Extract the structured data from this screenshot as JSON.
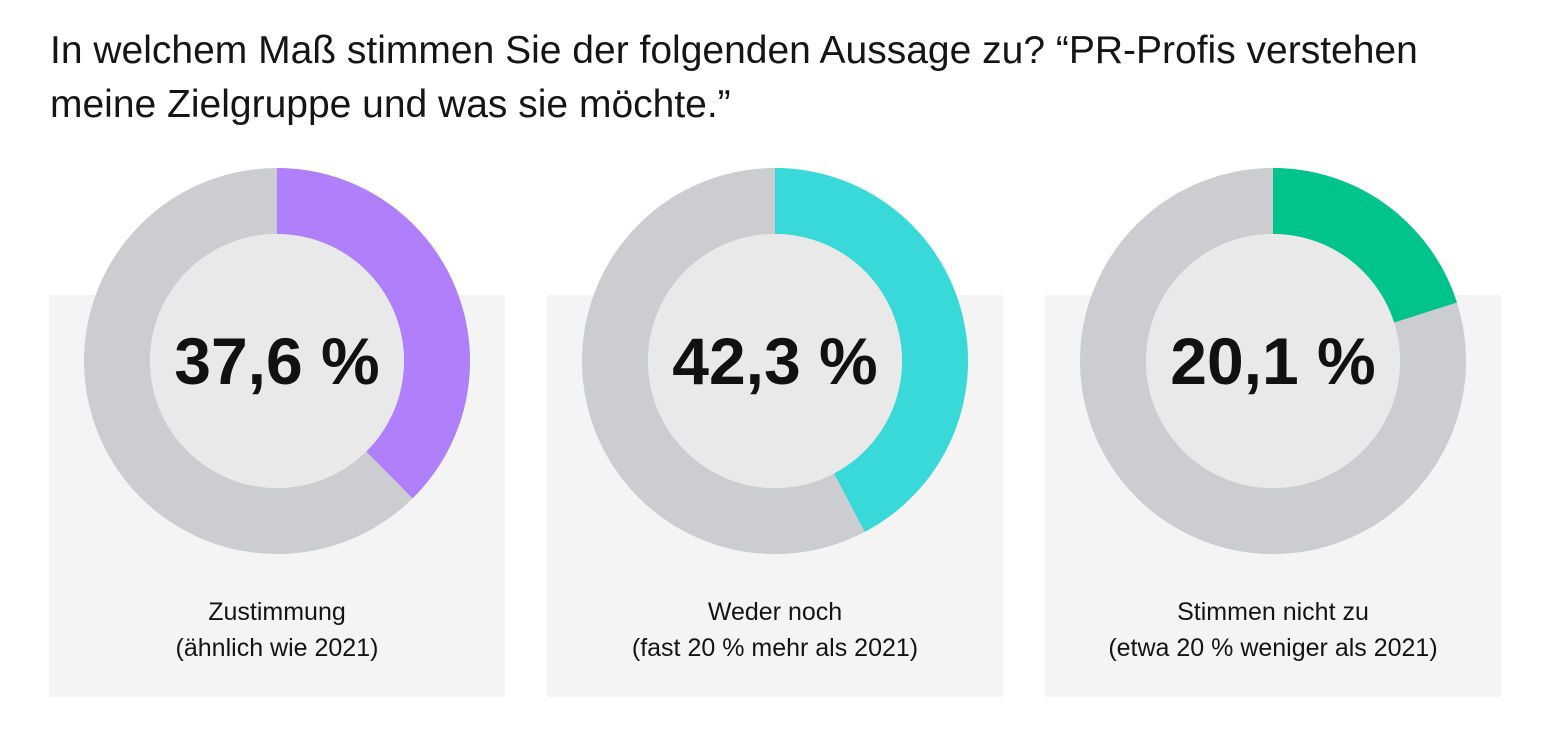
{
  "title": "In welchem Maß stimmen Sie der folgenden Aussage zu? “PR-Profis verstehen meine Zielgruppe und was sie möchte.”",
  "colors": {
    "track": "#cbcdd0",
    "hole": "#e9e9ea",
    "panel": "#f4f4f4"
  },
  "chart_data": [
    {
      "type": "pie",
      "value": 37.6,
      "value_label": "37,6 %",
      "color": "#b07ffb",
      "label": "Zustimmung",
      "sublabel": "(ähnlich wie 2021)"
    },
    {
      "type": "pie",
      "value": 42.3,
      "value_label": "42,3 %",
      "color": "#39d9d9",
      "label": "Weder noch",
      "sublabel": "(fast 20 % mehr als 2021)"
    },
    {
      "type": "pie",
      "value": 20.1,
      "value_label": "20,1 %",
      "color": "#00c48b",
      "label": "Stimmen nicht zu",
      "sublabel": "(etwa 20 % weniger als 2021)"
    }
  ]
}
